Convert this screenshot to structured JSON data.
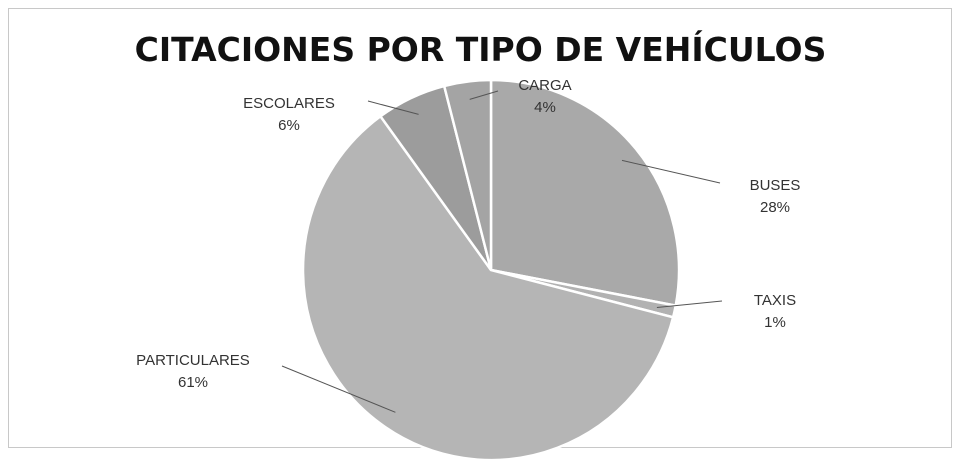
{
  "chart_data": {
    "type": "pie",
    "title": "CITACIONES POR TIPO DE VEHÍCULOS",
    "slices": [
      {
        "label": "BUSES",
        "value": 28,
        "text": "28%"
      },
      {
        "label": "TAXIS",
        "value": 1,
        "text": "1%"
      },
      {
        "label": "PARTICULARES",
        "value": 61,
        "text": "61%"
      },
      {
        "label": "ESCOLARES",
        "value": 6,
        "text": "6%"
      },
      {
        "label": "CARGA",
        "value": 4,
        "text": "4%"
      }
    ],
    "colors": [
      "#a9a9a9",
      "#b2b2b2",
      "#b5b5b5",
      "#9c9c9c",
      "#a4a4a4"
    ],
    "legend": "none"
  }
}
